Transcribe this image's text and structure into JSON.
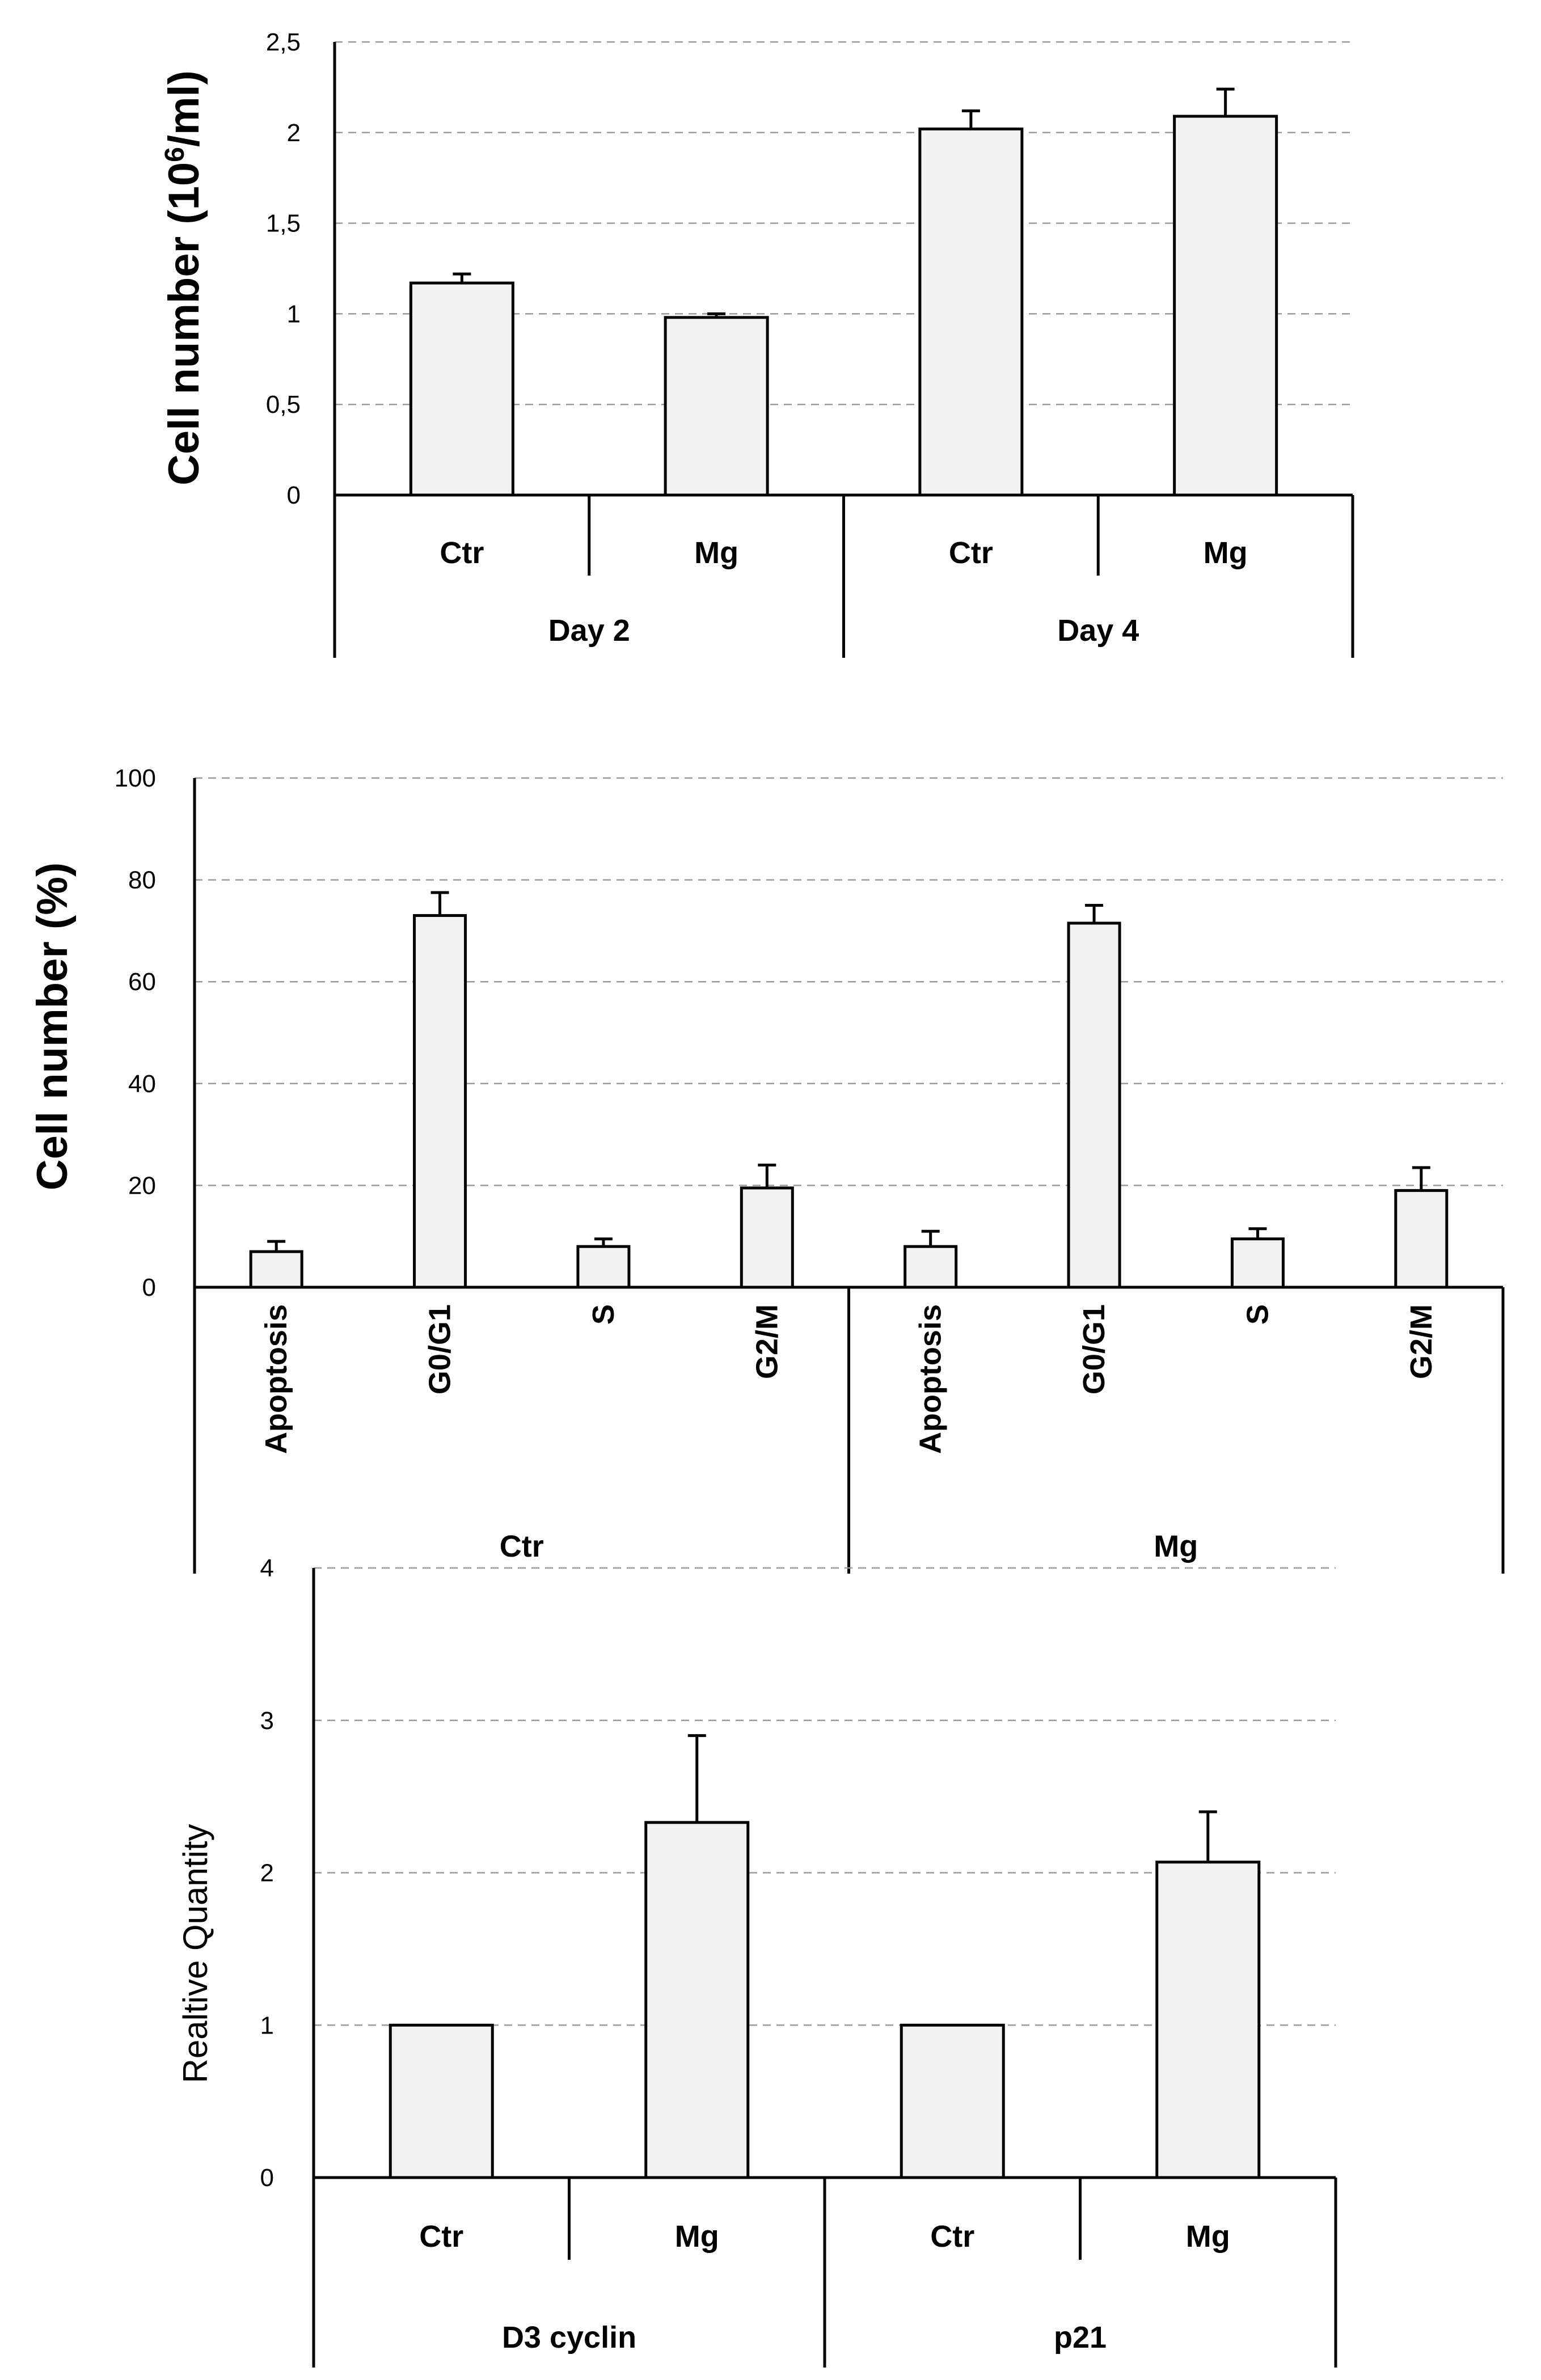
{
  "chart_data": [
    {
      "type": "bar",
      "ylabel": "Cell number (10⁶/ml)",
      "ylabel_main": "Cell number (10",
      "ylabel_sup": "6",
      "ylabel_tail": "/ml)",
      "ylim": [
        0,
        2.5
      ],
      "yticks": [
        "0",
        "0,5",
        "1",
        "1,5",
        "2",
        "2,5"
      ],
      "grid": true,
      "groups": [
        "Day 2",
        "Day 4"
      ],
      "categories": [
        "Ctr",
        "Mg",
        "Ctr",
        "Mg"
      ],
      "values": [
        1.17,
        0.98,
        2.02,
        2.09
      ],
      "errors": [
        0.05,
        0.02,
        0.1,
        0.15
      ]
    },
    {
      "type": "bar",
      "ylabel": "Cell number (%)",
      "ylim": [
        0,
        100
      ],
      "yticks": [
        "0",
        "20",
        "40",
        "60",
        "80",
        "100"
      ],
      "grid": true,
      "groups": [
        "Ctr",
        "Mg"
      ],
      "categories": [
        "Apoptosis",
        "G0/G1",
        "S",
        "G2/M",
        "Apoptosis",
        "G0/G1",
        "S",
        "G2/M"
      ],
      "values": [
        7,
        73,
        8,
        19.5,
        8,
        71.5,
        9.5,
        19
      ],
      "errors": [
        2,
        4.5,
        1.5,
        4.5,
        3,
        3.5,
        2,
        4.5
      ]
    },
    {
      "type": "bar",
      "ylabel": "Realtive Quantity",
      "ylim": [
        0,
        4
      ],
      "yticks": [
        "0",
        "1",
        "2",
        "3",
        "4"
      ],
      "grid": true,
      "groups": [
        "D3 cyclin",
        "p21"
      ],
      "categories": [
        "Ctr",
        "Mg",
        "Ctr",
        "Mg"
      ],
      "values": [
        1.0,
        2.33,
        1.0,
        2.07
      ],
      "errors": [
        0,
        0.57,
        0,
        0.33
      ]
    }
  ]
}
